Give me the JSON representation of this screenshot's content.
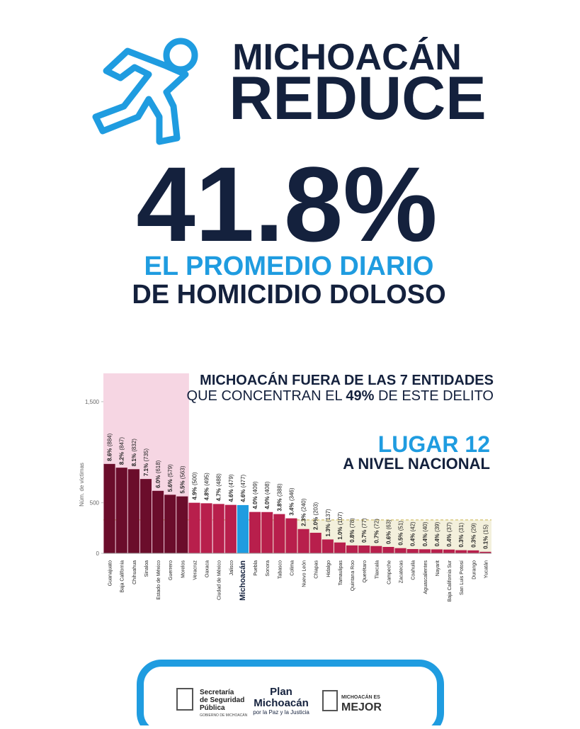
{
  "header": {
    "title_line1": "MICHOACÁN",
    "title_line2": "REDUCE",
    "big_figure": "41.8%",
    "subtitle_line1": "EL PROMEDIO DIARIO",
    "subtitle_line2": "DE HOMICIDIO DOLOSO"
  },
  "chart_data": {
    "type": "bar",
    "y_label": "Núm. de víctimas",
    "annotation_line1": "MICHOACÁN FUERA DE LAS 7 ENTIDADES",
    "annotation_line2_a": "QUE CONCENTRAN EL ",
    "annotation_line2_b": "49%",
    "annotation_line2_c": " DE ESTE DELITO",
    "rank_title": "LUGAR 12",
    "rank_subtitle": "A NIVEL NACIONAL",
    "categories": [
      "Guanajuato",
      "Baja California",
      "Chihuahua",
      "Sinaloa",
      "Estado de México",
      "Guerrero",
      "Morelos",
      "Veracruz",
      "Oaxaca",
      "Ciudad de México",
      "Jalisco",
      "Michoacán",
      "Puebla",
      "Sonora",
      "Tabasco",
      "Colima",
      "Nuevo León",
      "Chiapas",
      "Hidalgo",
      "Tamaulipas",
      "Quintana Roo",
      "Querétaro",
      "Tlaxcala",
      "Campeche",
      "Zacatecas",
      "Coahuila",
      "Aguascalientes",
      "Nayarit",
      "Baja California Sur",
      "San Luis Potosí",
      "Durango",
      "Yucatán"
    ],
    "values": [
      884,
      847,
      832,
      735,
      618,
      579,
      563,
      500,
      495,
      488,
      479,
      477,
      409,
      408,
      388,
      346,
      240,
      203,
      137,
      107,
      78,
      77,
      72,
      63,
      51,
      42,
      40,
      39,
      37,
      31,
      29,
      15
    ],
    "value_labels": [
      "(884)",
      "(847)",
      "(832)",
      "(735)",
      "(618)",
      "(579)",
      "(563)",
      "(500)",
      "(495)",
      "(488)",
      "(479)",
      "(477)",
      "(409)",
      "(408)",
      "(388)",
      "(346)",
      "(240)",
      "(203)",
      "(137)",
      "(107)",
      "(78)",
      "(77)",
      "(72)",
      "(63)",
      "(51)",
      "(42)",
      "(40)",
      "(39)",
      "(37)",
      "(31)",
      "(29)",
      "(15)"
    ],
    "share_labels": [
      "8.6%",
      "8.2%",
      "8.1%",
      "7.1%",
      "6.0%",
      "5.6%",
      "5.5%",
      "4.9%",
      "4.8%",
      "4.7%",
      "4.6%",
      "4.6%",
      "4.0%",
      "4.0%",
      "3.8%",
      "3.4%",
      "2.3%",
      "2.0%",
      "1.3%",
      "1.0%",
      "0.8%",
      "0.7%",
      "0.7%",
      "0.6%",
      "0.5%",
      "0.4%",
      "0.4%",
      "0.4%",
      "0.4%",
      "0.3%",
      "0.3%",
      "0.1%"
    ],
    "colors": [
      "#6b0d2b",
      "#6b0d2b",
      "#6b0d2b",
      "#6b0d2b",
      "#6b0d2b",
      "#6b0d2b",
      "#6b0d2b",
      "#b81f4c",
      "#b81f4c",
      "#b81f4c",
      "#b81f4c",
      "#1f9ce0",
      "#b81f4c",
      "#b81f4c",
      "#b81f4c",
      "#b81f4c",
      "#b81f4c",
      "#b81f4c",
      "#b81f4c",
      "#b81f4c",
      "#b81f4c",
      "#b81f4c",
      "#b81f4c",
      "#b81f4c",
      "#b81f4c",
      "#b81f4c",
      "#b81f4c",
      "#b81f4c",
      "#b81f4c",
      "#b81f4c",
      "#b81f4c",
      "#b81f4c"
    ],
    "reference_line": 330,
    "ylim": [
      0,
      1780
    ],
    "yticks": [
      0,
      500,
      {
        "value": 1500,
        "label": "1,500"
      }
    ]
  },
  "footer": {
    "ssp_line1": "Secretaría",
    "ssp_line2": "de Seguridad",
    "ssp_line3": "Pública",
    "ssp_gov": "GOBIERNO DE MICHOACÁN",
    "plan_line1": "Plan",
    "plan_line2": "Michoacán",
    "plan_line3": "por la Paz y la Justicia",
    "mejor_line1": "MICHOACÁN ES",
    "mejor_line2": "MEJOR"
  }
}
